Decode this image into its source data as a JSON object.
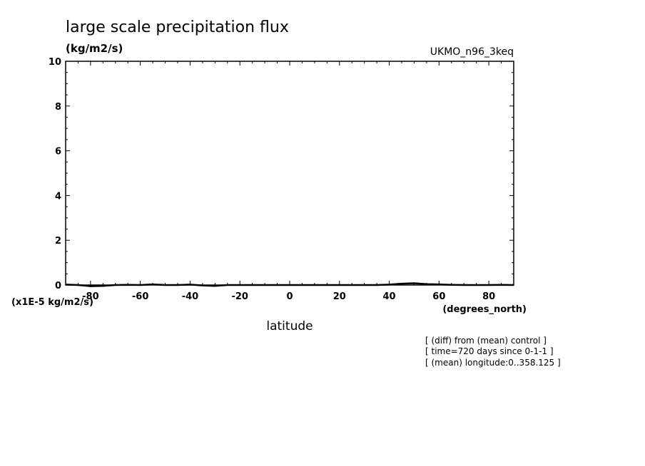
{
  "chart_data": {
    "type": "line",
    "title": "large scale precipitation flux",
    "units": "(kg/m2/s)",
    "model_label": "UKMO_n96_3keq",
    "scale_note": "(x1E-5 kg/m2/s)",
    "xlabel": "latitude",
    "xunits": "(degrees_north)",
    "xlim": [
      -90,
      90
    ],
    "ylim": [
      0,
      10
    ],
    "xticks": [
      -80,
      -60,
      -40,
      -20,
      0,
      20,
      40,
      60,
      80
    ],
    "xtick_labels": [
      "-80",
      "-60",
      "-40",
      "-20",
      "0",
      "20",
      "40",
      "60",
      "80"
    ],
    "yticks": [
      0,
      2,
      4,
      6,
      8,
      10
    ],
    "ytick_labels": [
      "0",
      "2",
      "4",
      "6",
      "8",
      "10"
    ],
    "grid": false,
    "series": [
      {
        "x": [
          -90,
          -85,
          -80,
          -75,
          -70,
          -65,
          -60,
          -55,
          -50,
          -45,
          -40,
          -35,
          -30,
          -25,
          -20,
          -15,
          -10,
          -5,
          0,
          5,
          10,
          15,
          20,
          25,
          30,
          35,
          40,
          45,
          50,
          55,
          60,
          65,
          70,
          75,
          80,
          85,
          90
        ],
        "values": [
          0.02,
          0.0,
          -0.05,
          -0.04,
          0.0,
          0.01,
          0.0,
          0.03,
          0.0,
          0.0,
          0.02,
          -0.02,
          -0.04,
          0.0,
          0.0,
          0.0,
          0.0,
          0.0,
          0.0,
          0.0,
          0.0,
          0.0,
          0.0,
          0.0,
          0.0,
          0.0,
          0.02,
          0.06,
          0.08,
          0.04,
          0.03,
          0.01,
          0.0,
          0.0,
          0.0,
          0.01,
          0.0
        ]
      }
    ],
    "notes": [
      "[ (diff) from (mean) control ]",
      "[ time=720 days since 0-1-1 ]",
      "[ (mean) longitude:0..358.125 ]"
    ]
  }
}
